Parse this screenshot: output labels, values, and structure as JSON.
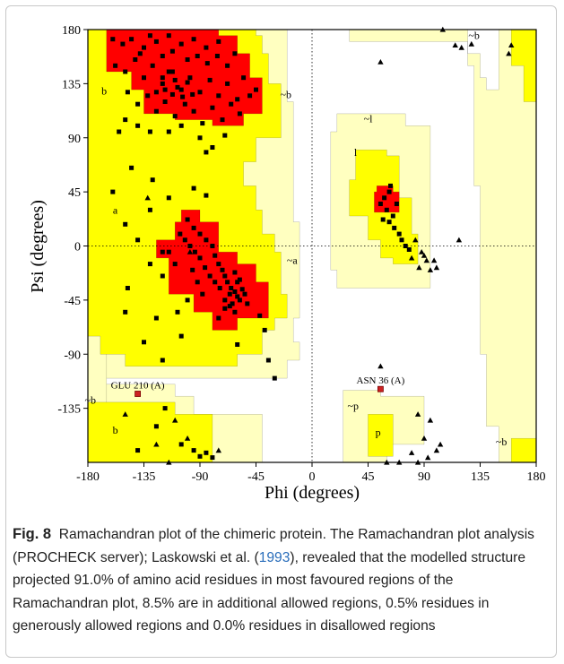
{
  "chart_data": {
    "type": "scatter",
    "title": "",
    "xlabel": "Phi (degrees)",
    "ylabel": "Psi (degrees)",
    "xlim": [
      -180,
      180
    ],
    "ylim": [
      -180,
      180
    ],
    "x_ticks": [
      -180,
      -135,
      -90,
      -45,
      0,
      45,
      90,
      135,
      180
    ],
    "y_ticks": [
      -135,
      -90,
      -45,
      0,
      45,
      90,
      135,
      180
    ],
    "grid": false,
    "region_colors": {
      "most_favoured": "#ff0000",
      "additional_allowed": "#ffff00",
      "generously_allowed": "#ffffc0",
      "disallowed": "#ffffff"
    },
    "region_labels": [
      {
        "text": "b",
        "phi": -167,
        "psi": 126
      },
      {
        "text": "a",
        "phi": -158,
        "psi": 27
      },
      {
        "text": "~b",
        "phi": -21,
        "psi": 123
      },
      {
        "text": "~a",
        "phi": -16,
        "psi": -15
      },
      {
        "text": "~l",
        "phi": 45,
        "psi": 103
      },
      {
        "text": "l",
        "phi": 35,
        "psi": 75
      },
      {
        "text": "~b",
        "phi": 130,
        "psi": 172
      },
      {
        "text": "~b",
        "phi": -178,
        "psi": -131
      },
      {
        "text": "b",
        "phi": -158,
        "psi": -156
      },
      {
        "text": "~p",
        "phi": 33,
        "psi": -136
      },
      {
        "text": "p",
        "phi": 53,
        "psi": -158
      },
      {
        "text": "~b",
        "phi": 152,
        "psi": -166
      }
    ],
    "labeled_residues": [
      {
        "name": "GLU 210 (A)",
        "phi": -140,
        "psi": -123
      },
      {
        "name": "ASN 36 (A)",
        "phi": 55,
        "psi": -119
      }
    ],
    "series": [
      {
        "marker": "square",
        "points": [
          [
            -160,
            172
          ],
          [
            -152,
            168
          ],
          [
            -145,
            172
          ],
          [
            -135,
            165
          ],
          [
            -125,
            170
          ],
          [
            -115,
            175
          ],
          [
            -105,
            168
          ],
          [
            -95,
            172
          ],
          [
            -85,
            165
          ],
          [
            -75,
            170
          ],
          [
            -158,
            150
          ],
          [
            -150,
            145
          ],
          [
            -142,
            155
          ],
          [
            -135,
            140
          ],
          [
            -128,
            150
          ],
          [
            -120,
            135
          ],
          [
            -112,
            145
          ],
          [
            -105,
            130
          ],
          [
            -98,
            140
          ],
          [
            -90,
            128
          ],
          [
            -82,
            138
          ],
          [
            -75,
            125
          ],
          [
            -68,
            135
          ],
          [
            -60,
            122
          ],
          [
            -55,
            140
          ],
          [
            -148,
            128
          ],
          [
            -140,
            118
          ],
          [
            -132,
            125
          ],
          [
            -125,
            112
          ],
          [
            -118,
            120
          ],
          [
            -110,
            108
          ],
          [
            -102,
            118
          ],
          [
            -95,
            112
          ],
          [
            -88,
            102
          ],
          [
            -80,
            115
          ],
          [
            -72,
            105
          ],
          [
            -65,
            118
          ],
          [
            -58,
            110
          ],
          [
            -50,
            125
          ],
          [
            -45,
            130
          ],
          [
            -138,
            160
          ],
          [
            -130,
            175
          ],
          [
            -120,
            158
          ],
          [
            -112,
            162
          ],
          [
            -100,
            155
          ],
          [
            -92,
            158
          ],
          [
            -84,
            152
          ],
          [
            -76,
            158
          ],
          [
            -68,
            150
          ],
          [
            -62,
            160
          ],
          [
            -125,
            128
          ],
          [
            -118,
            130
          ],
          [
            -112,
            126
          ],
          [
            -108,
            132
          ],
          [
            -104,
            124
          ],
          [
            -100,
            136
          ],
          [
            -96,
            126
          ],
          [
            -120,
            140
          ],
          [
            -115,
            145
          ],
          [
            -110,
            138
          ],
          [
            -150,
            105
          ],
          [
            -140,
            100
          ],
          [
            -130,
            95
          ],
          [
            -115,
            95
          ],
          [
            -90,
            90
          ],
          [
            -80,
            82
          ],
          [
            -155,
            95
          ],
          [
            -105,
            100
          ],
          [
            -85,
            78
          ],
          [
            -70,
            92
          ],
          [
            -145,
            65
          ],
          [
            -128,
            55
          ],
          [
            -160,
            45
          ],
          [
            -115,
            40
          ],
          [
            -95,
            48
          ],
          [
            -85,
            42
          ],
          [
            -130,
            30
          ],
          [
            -150,
            18
          ],
          [
            -140,
            5
          ],
          [
            -120,
            -5
          ],
          [
            -100,
            22
          ],
          [
            -95,
            15
          ],
          [
            -90,
            10
          ],
          [
            -85,
            5
          ],
          [
            -80,
            0
          ],
          [
            -78,
            -8
          ],
          [
            -75,
            -15
          ],
          [
            -72,
            -20
          ],
          [
            -70,
            -25
          ],
          [
            -68,
            -30
          ],
          [
            -65,
            -35
          ],
          [
            -62,
            -38
          ],
          [
            -60,
            -42
          ],
          [
            -58,
            -45
          ],
          [
            -64,
            -48
          ],
          [
            -66,
            -40
          ],
          [
            -70,
            -45
          ],
          [
            -74,
            -35
          ],
          [
            -78,
            -30
          ],
          [
            -82,
            -25
          ],
          [
            -86,
            -18
          ],
          [
            -90,
            -10
          ],
          [
            -94,
            -5
          ],
          [
            -98,
            0
          ],
          [
            -102,
            5
          ],
          [
            -106,
            10
          ],
          [
            -60,
            -30
          ],
          [
            -56,
            -36
          ],
          [
            -54,
            -40
          ],
          [
            -52,
            -48
          ],
          [
            -62,
            -55
          ],
          [
            -66,
            -50
          ],
          [
            -70,
            -52
          ],
          [
            -58,
            -28
          ],
          [
            -62,
            -22
          ],
          [
            -88,
            -40
          ],
          [
            -92,
            -30
          ],
          [
            -96,
            -20
          ],
          [
            -110,
            -15
          ],
          [
            -115,
            -5
          ],
          [
            -100,
            -45
          ],
          [
            -108,
            -55
          ],
          [
            -120,
            -25
          ],
          [
            -130,
            -15
          ],
          [
            -125,
            -60
          ],
          [
            -135,
            -80
          ],
          [
            -120,
            -95
          ],
          [
            -150,
            -55
          ],
          [
            -148,
            -35
          ],
          [
            -105,
            -75
          ],
          [
            -42,
            -58
          ],
          [
            -38,
            -70
          ],
          [
            -35,
            -95
          ],
          [
            -30,
            -110
          ],
          [
            -60,
            -82
          ],
          [
            -75,
            -60
          ],
          [
            -118,
            -135
          ],
          [
            -95,
            -170
          ],
          [
            -90,
            -175
          ],
          [
            -85,
            -172
          ],
          [
            -80,
            -176
          ],
          [
            -105,
            -165
          ],
          [
            -140,
            -170
          ],
          [
            -125,
            -150
          ],
          [
            58,
            40
          ],
          [
            62,
            45
          ],
          [
            55,
            35
          ],
          [
            60,
            30
          ],
          [
            65,
            25
          ],
          [
            68,
            35
          ],
          [
            63,
            50
          ],
          [
            57,
            22
          ],
          [
            66,
            15
          ],
          [
            70,
            10
          ],
          [
            72,
            5
          ],
          [
            75,
            0
          ],
          [
            78,
            -3
          ],
          [
            62,
            20
          ]
        ]
      },
      {
        "marker": "triangle",
        "points": [
          [
            105,
            180
          ],
          [
            115,
            167
          ],
          [
            120,
            165
          ],
          [
            128,
            168
          ],
          [
            160,
            167
          ],
          [
            55,
            153
          ],
          [
            158,
            160
          ],
          [
            -132,
            40
          ],
          [
            -98,
            -5
          ],
          [
            -150,
            -140
          ],
          [
            -125,
            -165
          ],
          [
            -115,
            -180
          ],
          [
            -110,
            -145
          ],
          [
            -100,
            -160
          ],
          [
            -75,
            -170
          ],
          [
            83,
            5
          ],
          [
            88,
            -5
          ],
          [
            92,
            -12
          ],
          [
            95,
            -20
          ],
          [
            100,
            -18
          ],
          [
            118,
            5
          ],
          [
            80,
            -10
          ],
          [
            86,
            -18
          ],
          [
            90,
            -8
          ],
          [
            98,
            -12
          ],
          [
            85,
            -140
          ],
          [
            95,
            -145
          ],
          [
            90,
            -160
          ],
          [
            100,
            -170
          ],
          [
            93,
            -176
          ],
          [
            80,
            -172
          ],
          [
            103,
            -165
          ],
          [
            55,
            -100
          ],
          [
            60,
            -185
          ],
          [
            70,
            -195
          ],
          [
            85,
            -180
          ]
        ]
      }
    ]
  },
  "caption": {
    "label": "Fig. 8",
    "text_1": "Ramachandran plot of the chimeric protein. The Ramachandran plot analysis (PROCHECK server); Laskowski et al. (",
    "year": "1993",
    "text_2": "), revealed that the modelled structure projected 91.0% of amino acid residues in most favoured regions of the Ramachandran plot, 8.5% are in additional allowed regions, 0.5% residues in generously allowed regions and 0.0% residues in disallowed regions"
  }
}
